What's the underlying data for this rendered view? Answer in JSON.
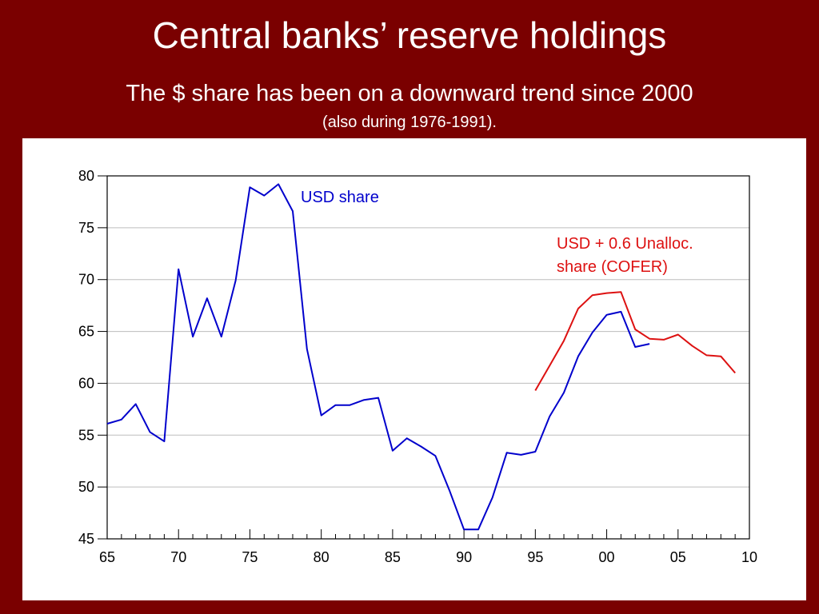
{
  "slide": {
    "title": "Central banks’ reserve holdings",
    "subtitle": "The $ share has been on a downward trend since 2000",
    "note": "(also during 1976-1991)."
  },
  "colors": {
    "background": "#7a0000",
    "usd_series": "#0000cc",
    "cofer_series": "#dd1111"
  },
  "chart_data": {
    "type": "line",
    "title": "",
    "xlabel": "",
    "ylabel": "",
    "xlim": [
      1965,
      2010
    ],
    "ylim": [
      45,
      80
    ],
    "grid": true,
    "x_tick_labels": [
      "65",
      "70",
      "75",
      "80",
      "85",
      "90",
      "95",
      "00",
      "05",
      "10"
    ],
    "y_tick_labels": [
      "45",
      "50",
      "55",
      "60",
      "65",
      "70",
      "75",
      "80"
    ],
    "series": [
      {
        "name": "USD share",
        "color": "#0000cc",
        "points": [
          [
            1965,
            56.1
          ],
          [
            1966,
            56.5
          ],
          [
            1967,
            58.0
          ],
          [
            1968,
            55.3
          ],
          [
            1969,
            54.4
          ],
          [
            1970,
            71.0
          ],
          [
            1971,
            64.5
          ],
          [
            1972,
            68.2
          ],
          [
            1973,
            64.5
          ],
          [
            1974,
            69.9
          ],
          [
            1975,
            78.9
          ],
          [
            1976,
            78.1
          ],
          [
            1977,
            79.2
          ],
          [
            1978,
            76.6
          ],
          [
            1979,
            63.3
          ],
          [
            1980,
            56.9
          ],
          [
            1981,
            57.9
          ],
          [
            1982,
            57.9
          ],
          [
            1983,
            58.4
          ],
          [
            1984,
            58.6
          ],
          [
            1985,
            53.5
          ],
          [
            1986,
            54.7
          ],
          [
            1987,
            53.9
          ],
          [
            1988,
            53.0
          ],
          [
            1989,
            49.6
          ],
          [
            1990,
            45.9
          ],
          [
            1991,
            45.9
          ],
          [
            1992,
            49.0
          ],
          [
            1993,
            53.3
          ],
          [
            1994,
            53.1
          ],
          [
            1995,
            53.4
          ],
          [
            1996,
            56.8
          ],
          [
            1997,
            59.1
          ],
          [
            1998,
            62.6
          ],
          [
            1999,
            64.9
          ],
          [
            2000,
            66.6
          ],
          [
            2001,
            66.9
          ],
          [
            2002,
            63.5
          ],
          [
            2003,
            63.8
          ]
        ]
      },
      {
        "name": "USD + 0.6 Unalloc. share (COFER)",
        "color": "#dd1111",
        "points": [
          [
            1995,
            59.3
          ],
          [
            1996,
            61.7
          ],
          [
            1997,
            64.1
          ],
          [
            1998,
            67.2
          ],
          [
            1999,
            68.5
          ],
          [
            2000,
            68.7
          ],
          [
            2001,
            68.8
          ],
          [
            2002,
            65.2
          ],
          [
            2003,
            64.3
          ],
          [
            2004,
            64.2
          ],
          [
            2005,
            64.7
          ],
          [
            2006,
            63.6
          ],
          [
            2007,
            62.7
          ],
          [
            2008,
            62.6
          ],
          [
            2009,
            61.0
          ]
        ]
      }
    ],
    "annotations": [
      {
        "series": 0,
        "lines": [
          "USD share"
        ]
      },
      {
        "series": 1,
        "lines": [
          "USD + 0.6 Unalloc.",
          "share (COFER)"
        ]
      }
    ]
  }
}
